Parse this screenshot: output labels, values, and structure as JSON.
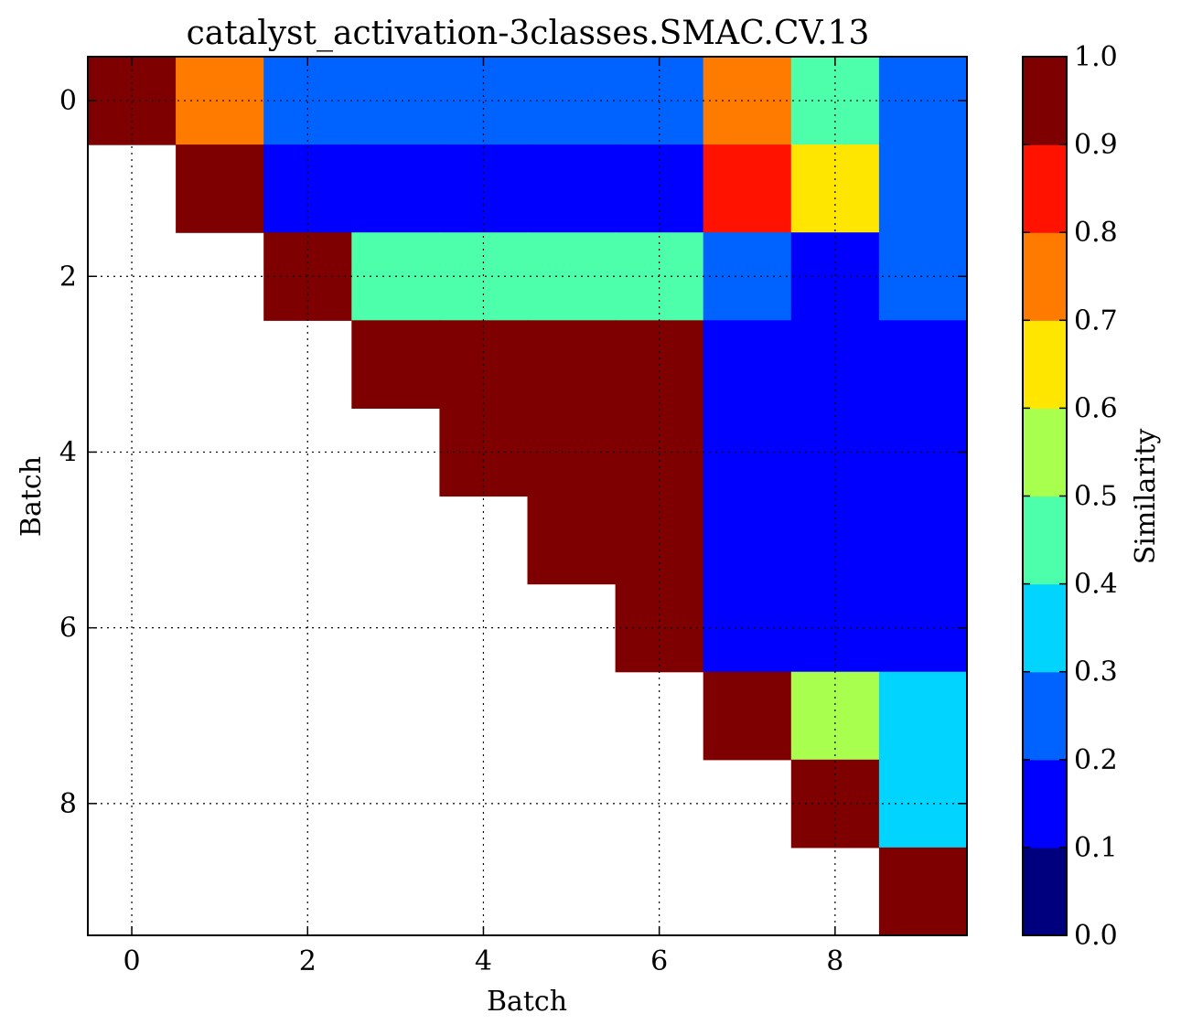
{
  "chart_data": {
    "type": "heatmap",
    "title": "catalyst_activation-3classes.SMAC.CV.13",
    "xlabel": "Batch",
    "ylabel": "Batch",
    "colorbar_label": "Similarity",
    "rows": 10,
    "cols": 10,
    "x_ticks": [
      "0",
      "2",
      "4",
      "6",
      "8"
    ],
    "y_ticks": [
      "0",
      "2",
      "4",
      "6",
      "8"
    ],
    "colorbar_ticks": [
      "0.0",
      "0.1",
      "0.2",
      "0.3",
      "0.4",
      "0.5",
      "0.6",
      "0.7",
      "0.8",
      "0.9",
      "1.0"
    ],
    "colorbar_range": [
      0.0,
      1.0
    ],
    "grid": true,
    "colormap_bins": [
      "#00007f",
      "#0000ff",
      "#0063ff",
      "#00d4ff",
      "#4dffaa",
      "#a9ff4d",
      "#ffe600",
      "#ff7b00",
      "#ff1300",
      "#7f0000"
    ],
    "matrix": [
      [
        1.0,
        0.75,
        0.25,
        0.25,
        0.25,
        0.25,
        0.25,
        0.75,
        0.45,
        0.25
      ],
      [
        null,
        1.0,
        0.15,
        0.15,
        0.15,
        0.15,
        0.15,
        0.85,
        0.65,
        0.25
      ],
      [
        null,
        null,
        1.0,
        0.45,
        0.45,
        0.45,
        0.45,
        0.25,
        0.15,
        0.25
      ],
      [
        null,
        null,
        null,
        1.0,
        1.0,
        1.0,
        1.0,
        0.15,
        0.15,
        0.15
      ],
      [
        null,
        null,
        null,
        null,
        1.0,
        1.0,
        1.0,
        0.15,
        0.15,
        0.15
      ],
      [
        null,
        null,
        null,
        null,
        null,
        1.0,
        1.0,
        0.15,
        0.15,
        0.15
      ],
      [
        null,
        null,
        null,
        null,
        null,
        null,
        1.0,
        0.15,
        0.15,
        0.15
      ],
      [
        null,
        null,
        null,
        null,
        null,
        null,
        null,
        1.0,
        0.55,
        0.35
      ],
      [
        null,
        null,
        null,
        null,
        null,
        null,
        null,
        null,
        1.0,
        0.35
      ],
      [
        null,
        null,
        null,
        null,
        null,
        null,
        null,
        null,
        null,
        1.0
      ]
    ]
  }
}
